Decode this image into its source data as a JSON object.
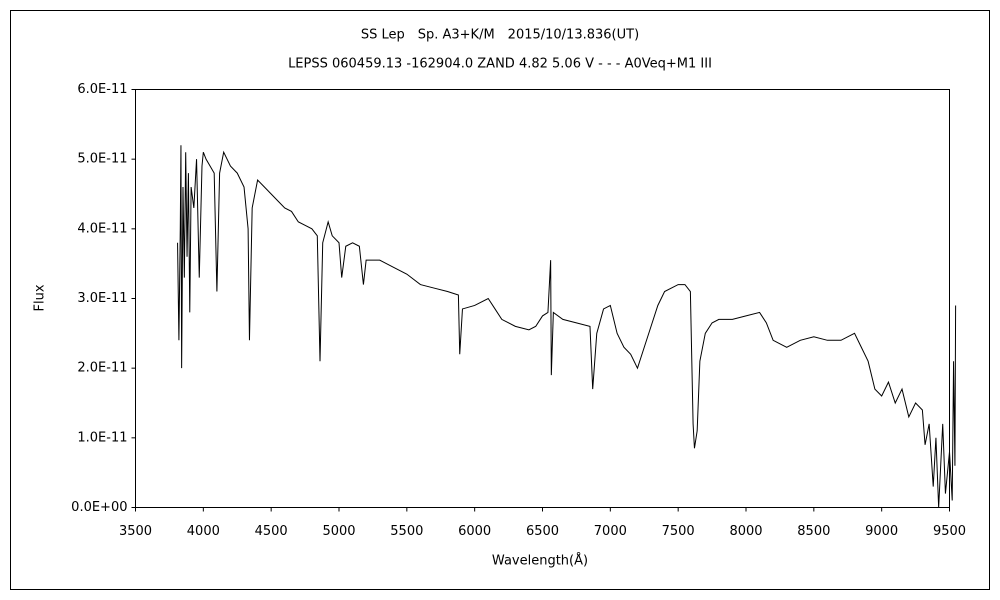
{
  "chart_data": {
    "type": "line",
    "title": "SS Lep　Sp. A3+K/M　2015/10/13.836(UT)",
    "subtitle": "LEPSS 060459.13 -162904.0 ZAND 4.82 5.06 V - - - A0Veq+M1 III",
    "xlabel": "Wavelength(Å)",
    "ylabel": "Flux",
    "color": "#000000",
    "xlim": [
      3500,
      9500
    ],
    "xticks": [
      3500,
      4000,
      4500,
      5000,
      5500,
      6000,
      6500,
      7000,
      7500,
      8000,
      8500,
      9000,
      9500
    ],
    "ylim": [
      0,
      6e-11
    ],
    "yticks": [
      {
        "value": 0,
        "label": "0.0E+00"
      },
      {
        "value": 1e-11,
        "label": "1.0E-11"
      },
      {
        "value": 2e-11,
        "label": "2.0E-11"
      },
      {
        "value": 3e-11,
        "label": "3.0E-11"
      },
      {
        "value": 4e-11,
        "label": "4.0E-11"
      },
      {
        "value": 5e-11,
        "label": "5.0E-11"
      },
      {
        "value": 6e-11,
        "label": "6.0E-11"
      }
    ],
    "grid": false,
    "x": [
      3810,
      3820,
      3830,
      3835,
      3840,
      3850,
      3860,
      3870,
      3880,
      3890,
      3900,
      3910,
      3930,
      3950,
      3970,
      3990,
      4000,
      4020,
      4050,
      4080,
      4100,
      4120,
      4150,
      4200,
      4250,
      4300,
      4330,
      4340,
      4360,
      4400,
      4450,
      4500,
      4550,
      4600,
      4650,
      4700,
      4750,
      4800,
      4840,
      4860,
      4880,
      4920,
      4950,
      5000,
      5020,
      5050,
      5100,
      5150,
      5180,
      5200,
      5300,
      5400,
      5500,
      5600,
      5700,
      5800,
      5880,
      5890,
      5910,
      6000,
      6100,
      6150,
      6200,
      6300,
      6400,
      6450,
      6500,
      6540,
      6560,
      6565,
      6580,
      6650,
      6750,
      6850,
      6870,
      6900,
      6950,
      7000,
      7050,
      7100,
      7150,
      7200,
      7250,
      7300,
      7350,
      7400,
      7450,
      7500,
      7550,
      7590,
      7610,
      7620,
      7640,
      7660,
      7700,
      7750,
      7800,
      7900,
      8000,
      8100,
      8150,
      8200,
      8250,
      8300,
      8400,
      8500,
      8600,
      8700,
      8800,
      8850,
      8900,
      8950,
      9000,
      9050,
      9100,
      9150,
      9200,
      9250,
      9300,
      9320,
      9350,
      9380,
      9400,
      9420,
      9450,
      9470,
      9500,
      9520,
      9530,
      9540,
      9545
    ],
    "values": [
      3.8e-11,
      2.4e-11,
      4e-11,
      5.2e-11,
      2e-11,
      4.6e-11,
      3.3e-11,
      5.1e-11,
      3.6e-11,
      4.8e-11,
      2.8e-11,
      4.6e-11,
      4.3e-11,
      5e-11,
      3.3e-11,
      4.9e-11,
      5.1e-11,
      5e-11,
      4.9e-11,
      4.8e-11,
      3.1e-11,
      4.8e-11,
      5.1e-11,
      4.9e-11,
      4.8e-11,
      4.6e-11,
      4e-11,
      2.4e-11,
      4.3e-11,
      4.7e-11,
      4.6e-11,
      4.5e-11,
      4.4e-11,
      4.3e-11,
      4.25e-11,
      4.1e-11,
      4.05e-11,
      4e-11,
      3.9e-11,
      2.1e-11,
      3.8e-11,
      4.1e-11,
      3.9e-11,
      3.8e-11,
      3.3e-11,
      3.75e-11,
      3.8e-11,
      3.75e-11,
      3.2e-11,
      3.55e-11,
      3.55e-11,
      3.45e-11,
      3.35e-11,
      3.2e-11,
      3.15e-11,
      3.1e-11,
      3.05e-11,
      2.2e-11,
      2.85e-11,
      2.9e-11,
      3e-11,
      2.85e-11,
      2.7e-11,
      2.6e-11,
      2.55e-11,
      2.6e-11,
      2.75e-11,
      2.8e-11,
      3.55e-11,
      1.9e-11,
      2.8e-11,
      2.7e-11,
      2.65e-11,
      2.6e-11,
      1.7e-11,
      2.5e-11,
      2.85e-11,
      2.9e-11,
      2.5e-11,
      2.3e-11,
      2.2e-11,
      2e-11,
      2.3e-11,
      2.6e-11,
      2.9e-11,
      3.1e-11,
      3.15e-11,
      3.2e-11,
      3.2e-11,
      3.1e-11,
      1.2e-11,
      8.5e-12,
      1.1e-11,
      2.1e-11,
      2.5e-11,
      2.65e-11,
      2.7e-11,
      2.7e-11,
      2.75e-11,
      2.8e-11,
      2.65e-11,
      2.4e-11,
      2.35e-11,
      2.3e-11,
      2.4e-11,
      2.45e-11,
      2.4e-11,
      2.4e-11,
      2.5e-11,
      2.3e-11,
      2.1e-11,
      1.7e-11,
      1.6e-11,
      1.8e-11,
      1.5e-11,
      1.7e-11,
      1.3e-11,
      1.5e-11,
      1.4e-11,
      9e-12,
      1.2e-11,
      3e-12,
      1e-11,
      0,
      1.2e-11,
      2e-12,
      8e-12,
      1e-12,
      2.1e-11,
      6e-12,
      2.9e-11
    ]
  }
}
